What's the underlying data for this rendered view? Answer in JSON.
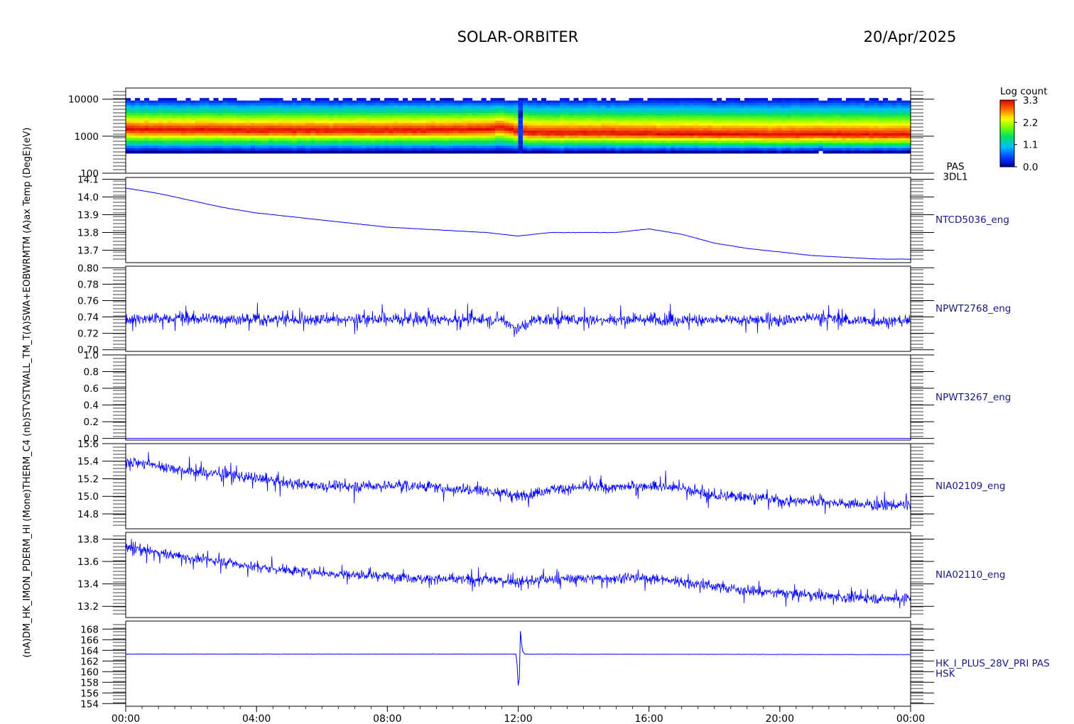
{
  "header": {
    "title": "SOLAR-ORBITER",
    "date": "20/Apr/2025"
  },
  "colorbar": {
    "title": "Log count",
    "ticks": [
      "3.3",
      "2.2",
      "1.1",
      "0.0"
    ]
  },
  "left_axis_text": "(nA)DM_HK_IMON_PDERM_HI (Mone)THERM_C4 (nb)STVSTWALL_TM_T(A)SWA+EOBWRMTM (A)ax Temp (DegE)(eV)",
  "x_ticks": [
    "00:00",
    "04:00",
    "08:00",
    "12:00",
    "16:00",
    "20:00",
    "00:00"
  ],
  "colors": {
    "line": "#0000ff",
    "label": "#1a1a80"
  },
  "chart_data": [
    {
      "type": "heatmap",
      "name": "PAS 3DL1 energy spectrogram",
      "right_label": [
        "PAS",
        "3DL1"
      ],
      "y_scale": "log",
      "ylim": [
        100,
        20000
      ],
      "y_ticks": [
        "10000",
        "1000",
        "100"
      ],
      "colorbar_range": [
        0.0,
        3.3
      ],
      "x_hours": [
        0,
        2,
        4,
        6,
        8,
        10,
        11,
        11.5,
        12.0,
        12.5,
        14,
        16,
        18,
        20,
        21.3,
        22,
        24
      ],
      "peak_energy_ev": [
        1500,
        1450,
        1400,
        1400,
        1400,
        1450,
        1500,
        1700,
        1300,
        1200,
        1200,
        1150,
        1100,
        1050,
        1100,
        1050,
        1050
      ]
    },
    {
      "type": "line",
      "right_label": "NTCD5036_eng",
      "ylim": [
        13.63,
        14.11
      ],
      "y_ticks": [
        "14.1",
        "14.0",
        "13.9",
        "13.8",
        "13.7"
      ],
      "x_hours": [
        0,
        1,
        2,
        3,
        4,
        5,
        6,
        7,
        8,
        9,
        10,
        11,
        12,
        13,
        14,
        15,
        16,
        17,
        18,
        19,
        20,
        21,
        22,
        23,
        24
      ],
      "values": [
        14.05,
        14.02,
        13.98,
        13.94,
        13.91,
        13.89,
        13.87,
        13.85,
        13.83,
        13.82,
        13.81,
        13.8,
        13.78,
        13.8,
        13.8,
        13.8,
        13.82,
        13.79,
        13.74,
        13.71,
        13.69,
        13.67,
        13.66,
        13.65,
        13.65
      ]
    },
    {
      "type": "line",
      "right_label": "NPWT2768_eng",
      "ylim": [
        0.698,
        0.802
      ],
      "y_ticks": [
        "0.80",
        "0.78",
        "0.76",
        "0.74",
        "0.72",
        "0.70"
      ],
      "x_hours": [
        0,
        2,
        4,
        6,
        8,
        10,
        11.5,
        12,
        12.5,
        14,
        16,
        18,
        20,
        21.3,
        22,
        24
      ],
      "values": [
        0.738,
        0.738,
        0.737,
        0.737,
        0.737,
        0.737,
        0.737,
        0.725,
        0.737,
        0.737,
        0.737,
        0.736,
        0.736,
        0.74,
        0.736,
        0.735
      ],
      "noise_range": [
        0.72,
        0.8
      ]
    },
    {
      "type": "line",
      "right_label": "NPWT3267_eng",
      "ylim": [
        -0.02,
        1.0
      ],
      "y_ticks": [
        "1.0",
        "0.8",
        "0.6",
        "0.4",
        "0.2",
        "0.0"
      ],
      "x_hours": [
        0,
        24
      ],
      "values": [
        0.0,
        0.0
      ]
    },
    {
      "type": "line",
      "right_label": "NIA02109_eng",
      "ylim": [
        14.63,
        15.6
      ],
      "y_ticks": [
        "15.6",
        "15.4",
        "15.2",
        "15.0",
        "14.8"
      ],
      "x_hours": [
        0,
        1,
        2,
        3,
        4,
        5,
        6,
        7,
        8,
        9,
        10,
        11,
        12,
        13,
        14,
        15,
        16,
        17,
        18,
        19,
        20,
        21,
        22,
        23,
        24
      ],
      "values": [
        15.4,
        15.35,
        15.28,
        15.25,
        15.2,
        15.15,
        15.12,
        15.12,
        15.12,
        15.12,
        15.08,
        15.07,
        15.0,
        15.08,
        15.1,
        15.1,
        15.12,
        15.1,
        15.0,
        15.0,
        14.95,
        14.95,
        14.92,
        14.9,
        14.9
      ],
      "noise_range": [
        14.8,
        15.5
      ]
    },
    {
      "type": "line",
      "right_label": "NIA02110_eng",
      "ylim": [
        13.1,
        13.86
      ],
      "y_ticks": [
        "13.8",
        "13.6",
        "13.4",
        "13.2"
      ],
      "x_hours": [
        0,
        1,
        2,
        3,
        4,
        5,
        6,
        7,
        8,
        9,
        10,
        11,
        12,
        13,
        14,
        15,
        16,
        17,
        18,
        19,
        20,
        21,
        22,
        23,
        24
      ],
      "values": [
        13.72,
        13.68,
        13.63,
        13.6,
        13.55,
        13.52,
        13.5,
        13.48,
        13.47,
        13.45,
        13.44,
        13.44,
        13.42,
        13.44,
        13.45,
        13.45,
        13.45,
        13.42,
        13.38,
        13.34,
        13.32,
        13.3,
        13.28,
        13.27,
        13.27
      ],
      "noise_range": [
        13.2,
        13.7
      ]
    },
    {
      "type": "line",
      "right_label": [
        "HK_I_PLUS_28V_PRI PAS",
        "HSK"
      ],
      "ylim": [
        153.5,
        169.5
      ],
      "y_ticks": [
        "168",
        "166",
        "164",
        "162",
        "160",
        "158",
        "156",
        "154"
      ],
      "x_hours": [
        0,
        11.95,
        12.02,
        12.07,
        12.12,
        12.2,
        24
      ],
      "values": [
        163.3,
        163.3,
        155.0,
        168.0,
        164.0,
        163.3,
        163.2
      ]
    }
  ]
}
